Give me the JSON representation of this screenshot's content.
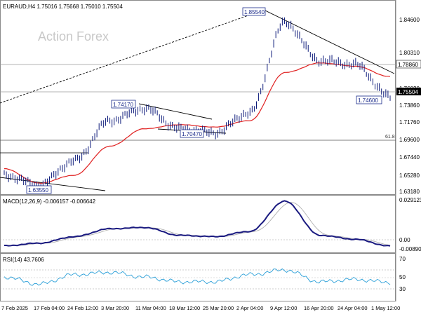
{
  "header": {
    "symbol_line": "EURAUD,H4  1.75016 1.75668 1.75010 1.75504"
  },
  "watermark": "Action Forex",
  "colors": {
    "price": "#0c1a7a",
    "ma": "#e02020",
    "macd": "#1a1a80",
    "signal": "#b0b0b0",
    "rsi": "#2a9fd8",
    "trend": "#000000",
    "label_border": "#1a2a8a",
    "last_box": "#000000",
    "watermark": "#c8c8c8",
    "grid_level": "#9a9a9a"
  },
  "price_axis": {
    "ticks": [
      "1.84600",
      "1.80310",
      "1.76020",
      "1.73860",
      "1.71760",
      "1.69600",
      "1.67440",
      "1.65280",
      "1.63180"
    ]
  },
  "annotations": {
    "high_1": "1.85540",
    "low_1": "1.63550",
    "swing_high": "1.74170",
    "swing_low": "1.70470",
    "recent_low": "1.74600",
    "level_resistance": "1.78860",
    "last_price": "1.75504",
    "fib_label": "61.8"
  },
  "macd": {
    "label": "MACD(12,26,9) -0.006157 -0.006642",
    "ticks": [
      "0.029123",
      "0.00",
      "-0.008901"
    ]
  },
  "rsi": {
    "label": "RSI(14) 43.7606",
    "ticks": [
      "70",
      "50",
      "30"
    ]
  },
  "time_axis": [
    "7 Feb 2025",
    "17 Feb 04:00",
    "24 Feb 12:00",
    "3 Mar 20:00",
    "11 Mar 04:00",
    "18 Mar 12:00",
    "25 Mar 20:00",
    "2 Apr 04:00",
    "9 Apr 12:00",
    "16 Apr 20:00",
    "24 Apr 04:00",
    "1 May 12:00"
  ],
  "chart_data": {
    "type": "line",
    "title": "EURAUD,H4",
    "x": [
      "7 Feb 2025",
      "17 Feb 04:00",
      "24 Feb 12:00",
      "3 Mar 20:00",
      "11 Mar 04:00",
      "18 Mar 12:00",
      "25 Mar 20:00",
      "2 Apr 04:00",
      "9 Apr 12:00",
      "16 Apr 20:00",
      "24 Apr 04:00",
      "1 May 12:00"
    ],
    "series": [
      {
        "values": [
          1.652,
          1.64,
          1.67,
          1.72,
          1.735,
          1.71,
          1.705,
          1.73,
          1.842,
          1.795,
          1.79,
          1.75
        ]
      },
      {
        "values": [
          1.66,
          1.642,
          1.652,
          1.688,
          1.71,
          1.715,
          1.712,
          1.72,
          1.78,
          1.792,
          1.788,
          1.775
        ]
      }
    ],
    "macd": [
      -0.006,
      -0.004,
      0.001,
      0.007,
      0.008,
      0.002,
      0.001,
      0.005,
      0.028,
      0.002,
      -0.001,
      -0.0062
    ],
    "rsi": [
      55,
      40,
      60,
      65,
      55,
      45,
      45,
      60,
      70,
      45,
      50,
      43.8
    ],
    "ylim": [
      1.63,
      1.865
    ]
  }
}
